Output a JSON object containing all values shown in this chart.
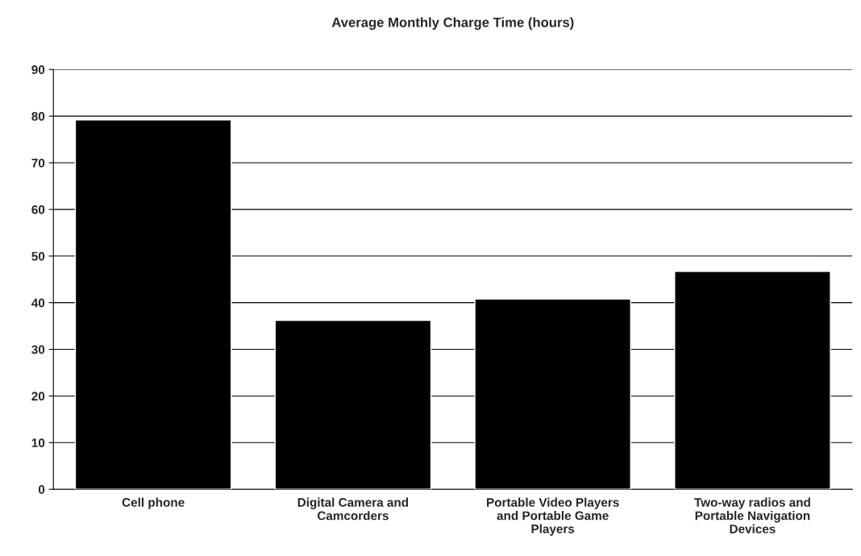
{
  "chart_data": {
    "type": "bar",
    "title": "Average Monthly Charge Time (hours)",
    "categories": [
      "Cell phone",
      "Digital Camera and Camcorders",
      "Portable Video Players and Portable Game Players",
      "Two-way radios and Portable Navigation Devices"
    ],
    "values": [
      79.2,
      36.2,
      40.8,
      46.7
    ],
    "color": "#000000",
    "ylim": [
      0,
      90
    ],
    "yticks": [
      0,
      10,
      20,
      30,
      40,
      50,
      60,
      70,
      80,
      90
    ],
    "grid": "y"
  }
}
